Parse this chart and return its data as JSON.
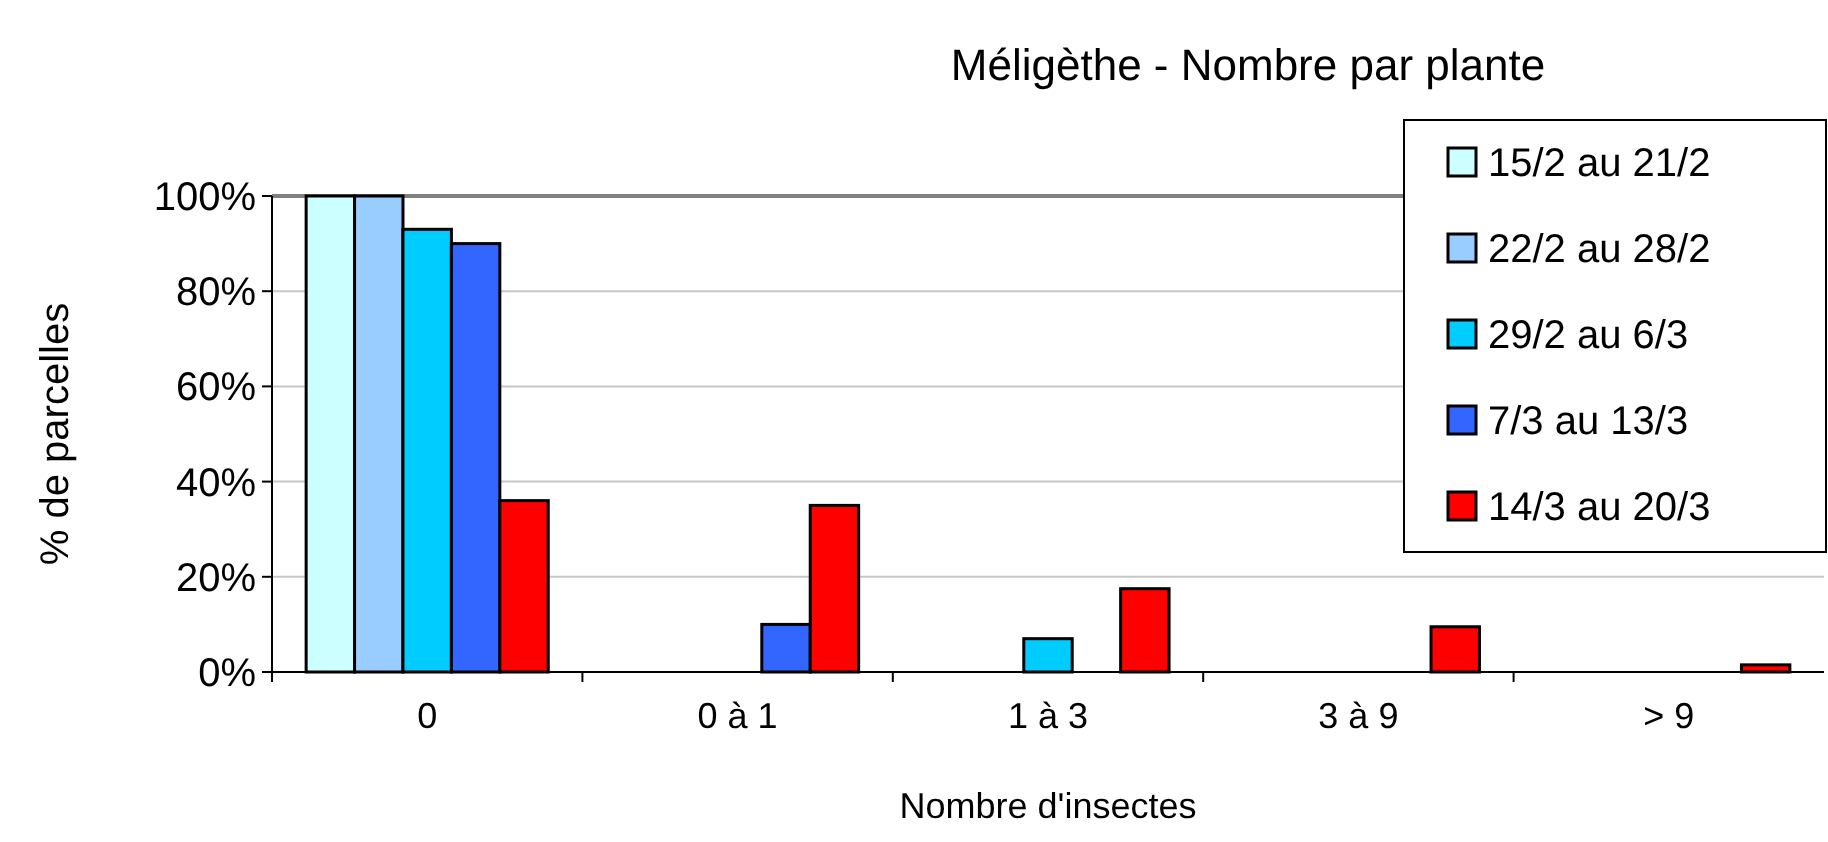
{
  "chart_data": {
    "type": "bar",
    "title": "Méligèthe - Nombre par plante",
    "xlabel": "Nombre d'insectes",
    "ylabel": "% de parcelles",
    "categories": [
      "0",
      "0 à 1",
      "1 à 3",
      "3 à 9",
      "> 9"
    ],
    "series": [
      {
        "name": "15/2 au 21/2",
        "color": "#ccffff",
        "values": [
          100,
          0,
          0,
          0,
          0
        ]
      },
      {
        "name": "22/2 au 28/2",
        "color": "#99ccff",
        "values": [
          100,
          0,
          0,
          0,
          0
        ]
      },
      {
        "name": "29/2 au 6/3",
        "color": "#00ccff",
        "values": [
          93,
          0,
          7,
          0,
          0
        ]
      },
      {
        "name": "7/3 au 13/3",
        "color": "#3366ff",
        "values": [
          90,
          10,
          0,
          0,
          0
        ]
      },
      {
        "name": "14/3 au 20/3",
        "color": "#ff0000",
        "values": [
          36,
          35,
          17.5,
          9.5,
          1.5
        ]
      }
    ],
    "ylim": [
      0,
      100
    ],
    "yticks": [
      {
        "value": 0,
        "label": "0%"
      },
      {
        "value": 20,
        "label": "20%"
      },
      {
        "value": 40,
        "label": "40%"
      },
      {
        "value": 60,
        "label": "60%"
      },
      {
        "value": 80,
        "label": "80%"
      },
      {
        "value": 100,
        "label": "100%"
      }
    ],
    "grid": "y",
    "legend": "top right"
  }
}
